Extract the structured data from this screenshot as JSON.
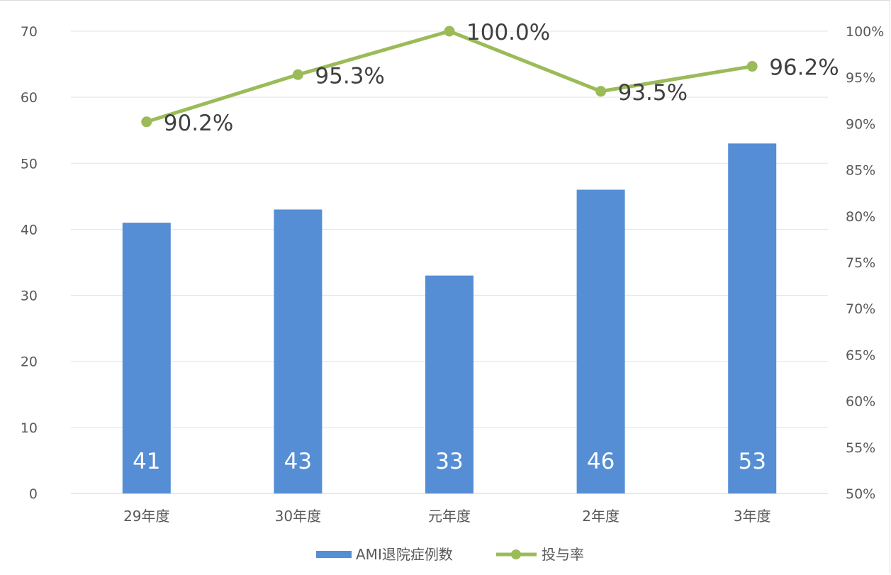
{
  "chart_data": {
    "type": "bar",
    "categories": [
      "29年度",
      "30年度",
      "元年度",
      "2年度",
      "3年度"
    ],
    "series": [
      {
        "name": "AMI退院症例数",
        "type": "bar",
        "axis": "left",
        "values": [
          41,
          43,
          33,
          46,
          53
        ],
        "labels": [
          "41",
          "43",
          "33",
          "46",
          "53"
        ],
        "color": "#558ed5"
      },
      {
        "name": "投与率",
        "type": "line",
        "axis": "right",
        "values": [
          90.2,
          95.3,
          100.0,
          93.5,
          96.2
        ],
        "labels": [
          "90.2%",
          "95.3%",
          "100.0%",
          "93.5%",
          "96.2%"
        ],
        "color": "#9bbb59"
      }
    ],
    "y_left": {
      "min": 0,
      "max": 70,
      "step": 10,
      "ticks": [
        "0",
        "10",
        "20",
        "30",
        "40",
        "50",
        "60",
        "70"
      ]
    },
    "y_right": {
      "min": 50,
      "max": 100,
      "step": 5,
      "ticks": [
        "50%",
        "55%",
        "60%",
        "65%",
        "70%",
        "75%",
        "80%",
        "85%",
        "90%",
        "95%",
        "100%"
      ]
    },
    "grid": true,
    "legend_position": "bottom-center",
    "title": "",
    "xlabel": "",
    "ylabel": ""
  }
}
